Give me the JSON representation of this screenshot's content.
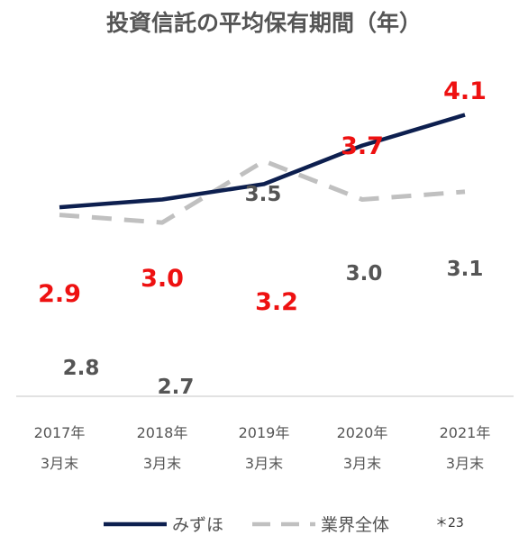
{
  "chart_data": {
    "type": "line",
    "title": "投資信託の平均保有期間（年）",
    "categories": [
      [
        "2017年",
        "3月末"
      ],
      [
        "2018年",
        "3月末"
      ],
      [
        "2019年",
        "3月末"
      ],
      [
        "2020年",
        "3月末"
      ],
      [
        "2021年",
        "3月末"
      ]
    ],
    "series": [
      {
        "name": "みずほ",
        "values": [
          2.9,
          3.0,
          3.2,
          3.7,
          4.1
        ],
        "color": "#0d1f4f",
        "style": "solid",
        "label_color": "#ee1111"
      },
      {
        "name": "業界全体",
        "values": [
          2.8,
          2.7,
          3.5,
          3.0,
          3.1
        ],
        "color": "#c0c0c0",
        "style": "dashed",
        "label_color": "#555555"
      }
    ],
    "data_labels": [
      [
        "2.9",
        "3.0",
        "3.2",
        "3.7",
        "4.1"
      ],
      [
        "2.8",
        "2.7",
        "3.5",
        "3.0",
        "3.1"
      ]
    ],
    "legend_position": "bottom",
    "grid": false,
    "footnote": "＊23"
  }
}
